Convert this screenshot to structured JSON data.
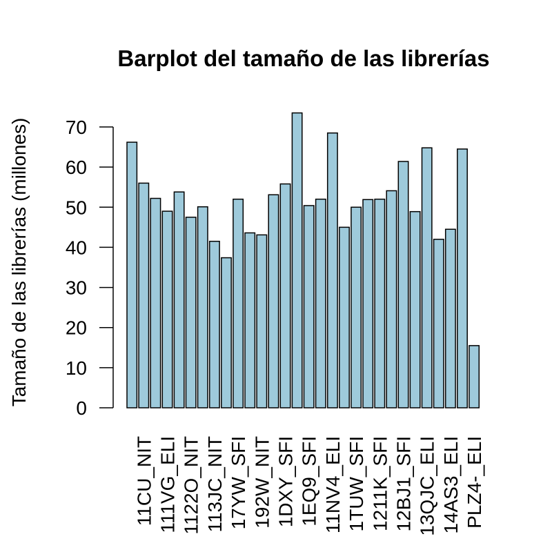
{
  "chart_data": {
    "type": "bar",
    "title": "Barplot del tamaño de las librerías",
    "xlabel": "",
    "ylabel": "Tamaño de las librerías (millones)",
    "ylim": [
      0,
      70
    ],
    "yticks": [
      "0",
      "10",
      "20",
      "30",
      "40",
      "50",
      "60",
      "70"
    ],
    "bar_color": "#9ecadb",
    "grid": false,
    "categories": [
      "",
      "11CU_NIT",
      "",
      "111VG_ELI",
      "",
      "1122O_NIT",
      "",
      "113JC_NIT",
      "",
      "17YW_SFI",
      "",
      "192W_NIT",
      "",
      "1DXY_SFI",
      "",
      "1EQ9_SFI",
      "",
      "11NV4_ELI",
      "",
      "1TUW_SFI",
      "",
      "1211K_SFI",
      "",
      "12BJ1_SFI",
      "",
      "13QJC_ELI",
      "",
      "14AS3_ELI",
      "",
      "PLZ4-_ELI"
    ],
    "values": [
      66.2,
      56.0,
      52.2,
      49.0,
      53.8,
      47.5,
      50.1,
      41.5,
      37.4,
      52.0,
      43.6,
      43.1,
      53.1,
      55.8,
      73.5,
      50.4,
      52.0,
      68.5,
      45.0,
      50.0,
      51.9,
      52.0,
      54.1,
      61.4,
      48.9,
      64.8,
      42.0,
      44.5,
      64.5,
      15.5
    ]
  }
}
